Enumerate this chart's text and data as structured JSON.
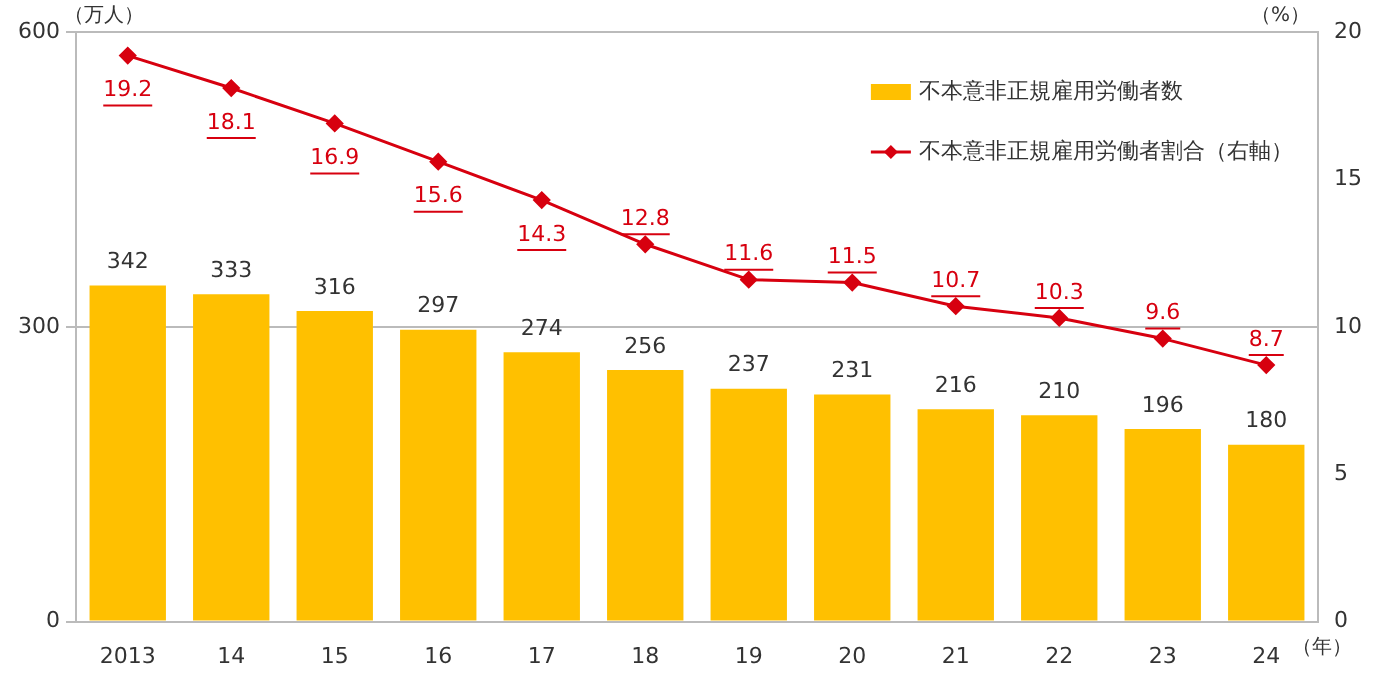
{
  "chart_data": {
    "type": "bar",
    "ylabel": "（万人）",
    "y2label": "（%）",
    "xlabel": "（年）",
    "categories": [
      "2013",
      "14",
      "15",
      "16",
      "17",
      "18",
      "19",
      "20",
      "21",
      "22",
      "23",
      "24"
    ],
    "series": [
      {
        "name": "不本意非正規雇用労働者数",
        "color": "#ffc000",
        "values": [
          342,
          333,
          316,
          297,
          274,
          256,
          237,
          231,
          216,
          210,
          196,
          180
        ]
      },
      {
        "name": "不本意非正規雇用労働者割合（右軸）",
        "type": "line",
        "axis": "y2",
        "color": "#d7000f",
        "values": [
          19.2,
          18.1,
          16.9,
          15.6,
          14.3,
          12.8,
          11.6,
          11.5,
          10.7,
          10.3,
          9.6,
          8.7
        ]
      }
    ],
    "ylim": [
      0,
      600
    ],
    "yticks": [
      0,
      300,
      600
    ],
    "y2lim": [
      0,
      20
    ],
    "y2ticks": [
      0,
      5,
      10,
      15,
      20
    ],
    "grid": "y",
    "legend": "top right",
    "marker": "diamond",
    "data_labels": true
  }
}
